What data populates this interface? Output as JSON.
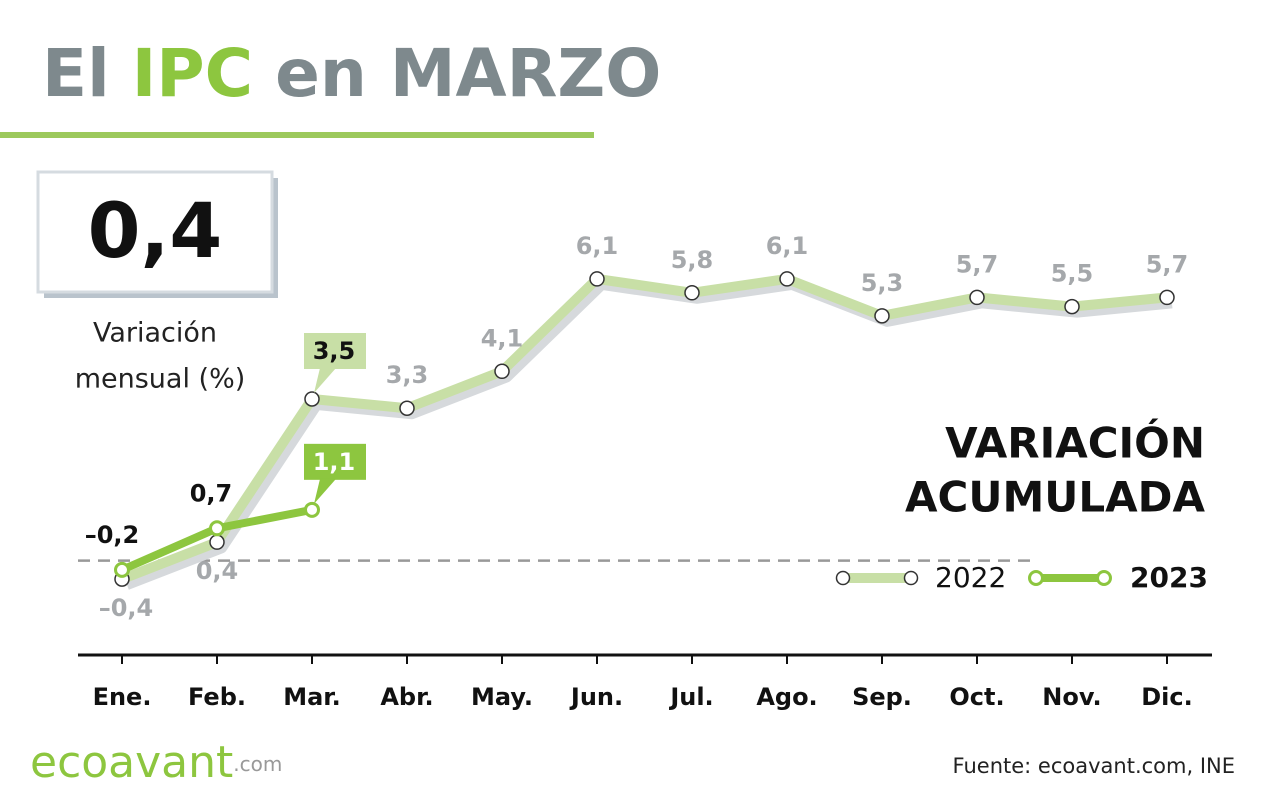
{
  "chart_data": {
    "type": "line",
    "title_parts": [
      "El",
      "IPC",
      "en MARZO"
    ],
    "headline": {
      "value": 0.4,
      "label": "0,4"
    },
    "headline_caption": [
      "Variación",
      "mensual (%)"
    ],
    "subtitle": [
      "VARIACIÓN",
      "ACUMULADA"
    ],
    "categories": [
      "Ene.",
      "Feb.",
      "Mar.",
      "Abr.",
      "May.",
      "Jun.",
      "Jul.",
      "Ago.",
      "Sep.",
      "Oct.",
      "Nov.",
      "Dic."
    ],
    "series": [
      {
        "name": "2022",
        "color": "#c8dfa6",
        "values": [
          -0.4,
          0.4,
          3.5,
          3.3,
          4.1,
          6.1,
          5.8,
          6.1,
          5.3,
          5.7,
          5.5,
          5.7
        ],
        "value_labels": [
          "–0,4",
          "0,4",
          "3,5",
          "3,3",
          "4,1",
          "6,1",
          "5,8",
          "6,1",
          "5,3",
          "5,7",
          "5,5",
          "5,7"
        ]
      },
      {
        "name": "2023",
        "color": "#8dc63f",
        "values": [
          -0.2,
          0.7,
          1.1,
          null,
          null,
          null,
          null,
          null,
          null,
          null,
          null,
          null
        ],
        "value_labels": [
          "–0,2",
          "0,7",
          "1,1",
          null,
          null,
          null,
          null,
          null,
          null,
          null,
          null,
          null
        ]
      }
    ],
    "ylim": [
      -2,
      9
    ],
    "source": "Fuente: ecoavant.com, INE",
    "logo": [
      "ecoavant",
      ".com"
    ]
  }
}
